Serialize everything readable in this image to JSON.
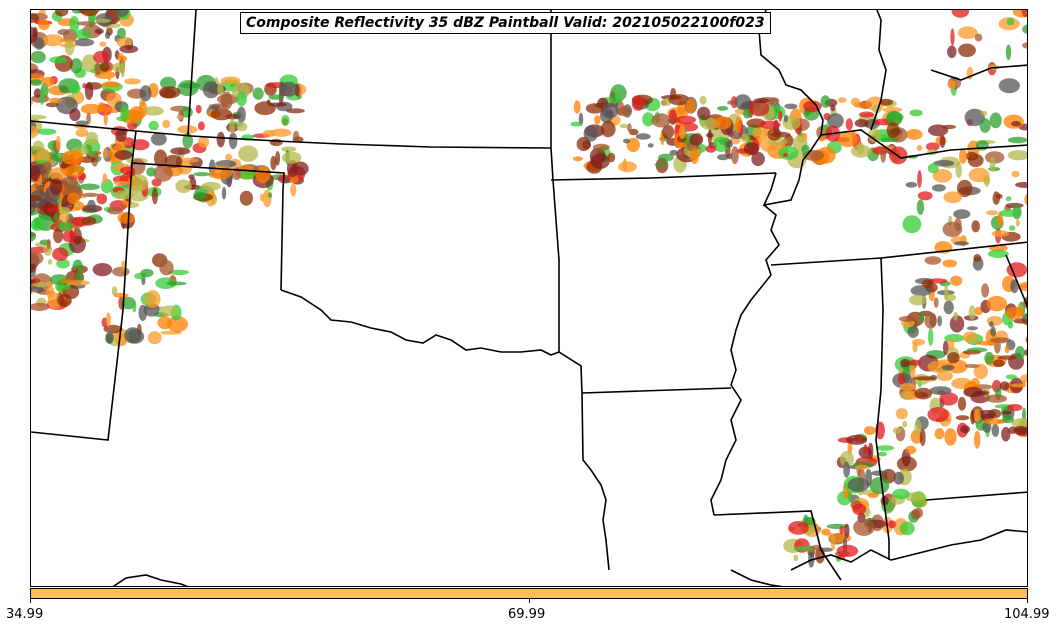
{
  "title": "Composite Reflectivity 35 dBZ Paintball Valid: 2021050221​00f023",
  "colors": {
    "border": "#000000",
    "colorbar_fill": "#fdbf5a",
    "member_colors": [
      "#ff7f00",
      "#e31a1c",
      "#fb9a29",
      "#8c2d04",
      "#2ca02c",
      "#33cc33",
      "#b5b84a",
      "#7f1f1f",
      "#a5572f",
      "#555555"
    ]
  },
  "colorbar": {
    "ticks": [
      "34.99",
      "69.99",
      "104.99"
    ],
    "color_name": "light-orange"
  },
  "layers": {
    "state_borders": "state-border-lines",
    "storm_cells": "storm-paintball-blobs"
  }
}
